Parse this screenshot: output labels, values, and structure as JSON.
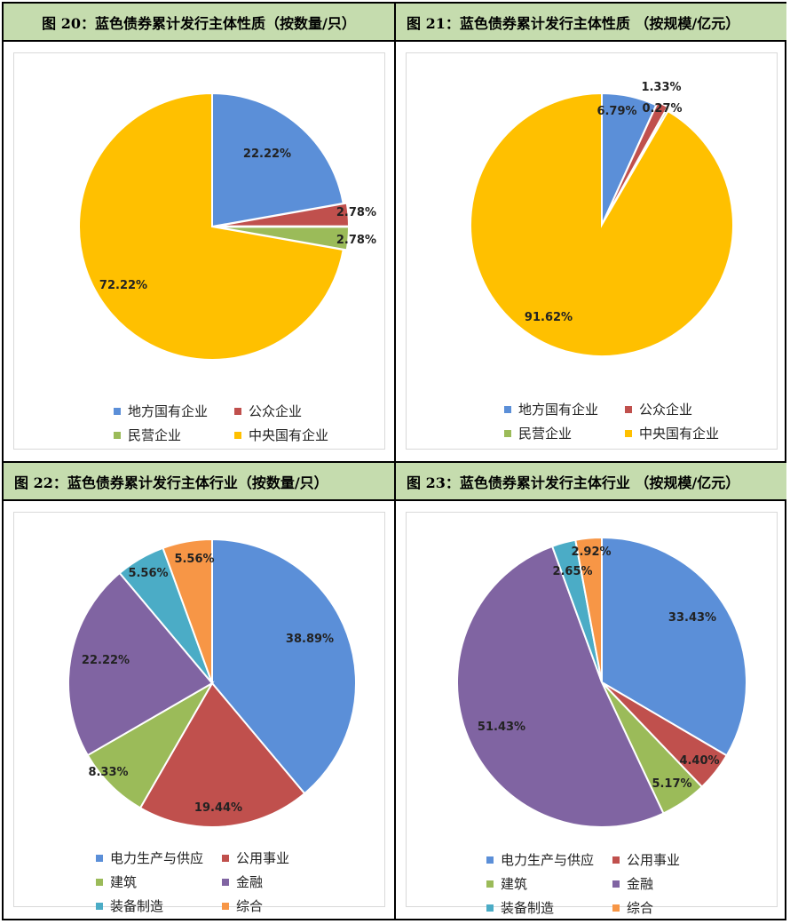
{
  "colors": {
    "blue": "#5b8fd8",
    "red": "#c0504d",
    "green": "#9bbb59",
    "yellow": "#ffc000",
    "purple": "#8064a2",
    "teal": "#4bacc6",
    "orange": "#f79646",
    "header_bg": "#c5dcae"
  },
  "chart_data": [
    {
      "id": "fig20",
      "title": "图 20：蓝色债券累计发行主体性质（按数量/只）",
      "type": "pie",
      "categories": [
        "地方国有企业",
        "公众企业",
        "民营企业",
        "中央国有企业"
      ],
      "values": [
        22.22,
        2.78,
        2.78,
        72.22
      ],
      "labels": [
        "22.22%",
        "2.78%",
        "2.78%",
        "72.22%"
      ],
      "legend": "bottom"
    },
    {
      "id": "fig21",
      "title": "图 21：蓝色债券累计发行主体性质 （按规模/亿元）",
      "type": "pie",
      "categories": [
        "地方国有企业",
        "公众企业",
        "民营企业",
        "中央国有企业"
      ],
      "values": [
        6.79,
        1.33,
        0.27,
        91.62
      ],
      "labels": [
        "6.79%",
        "1.33%",
        "0.27%",
        "91.62%"
      ],
      "legend": "bottom"
    },
    {
      "id": "fig22",
      "title": "图 22：蓝色债券累计发行主体行业（按数量/只）",
      "type": "pie",
      "categories": [
        "电力生产与供应",
        "公用事业",
        "建筑",
        "金融",
        "装备制造",
        "综合"
      ],
      "values": [
        38.89,
        19.44,
        8.33,
        22.22,
        5.56,
        5.56
      ],
      "labels": [
        "38.89%",
        "19.44%",
        "8.33%",
        "22.22%",
        "5.56%",
        "5.56%"
      ],
      "legend": "bottom"
    },
    {
      "id": "fig23",
      "title": "图 23：蓝色债券累计发行主体行业 （按规模/亿元）",
      "type": "pie",
      "categories": [
        "电力生产与供应",
        "公用事业",
        "建筑",
        "金融",
        "装备制造",
        "综合"
      ],
      "values": [
        33.43,
        4.4,
        5.17,
        51.43,
        2.65,
        2.92
      ],
      "labels": [
        "33.43%",
        "4.40%",
        "5.17%",
        "51.43%",
        "2.65%",
        "2.92%"
      ],
      "legend": "bottom"
    }
  ]
}
